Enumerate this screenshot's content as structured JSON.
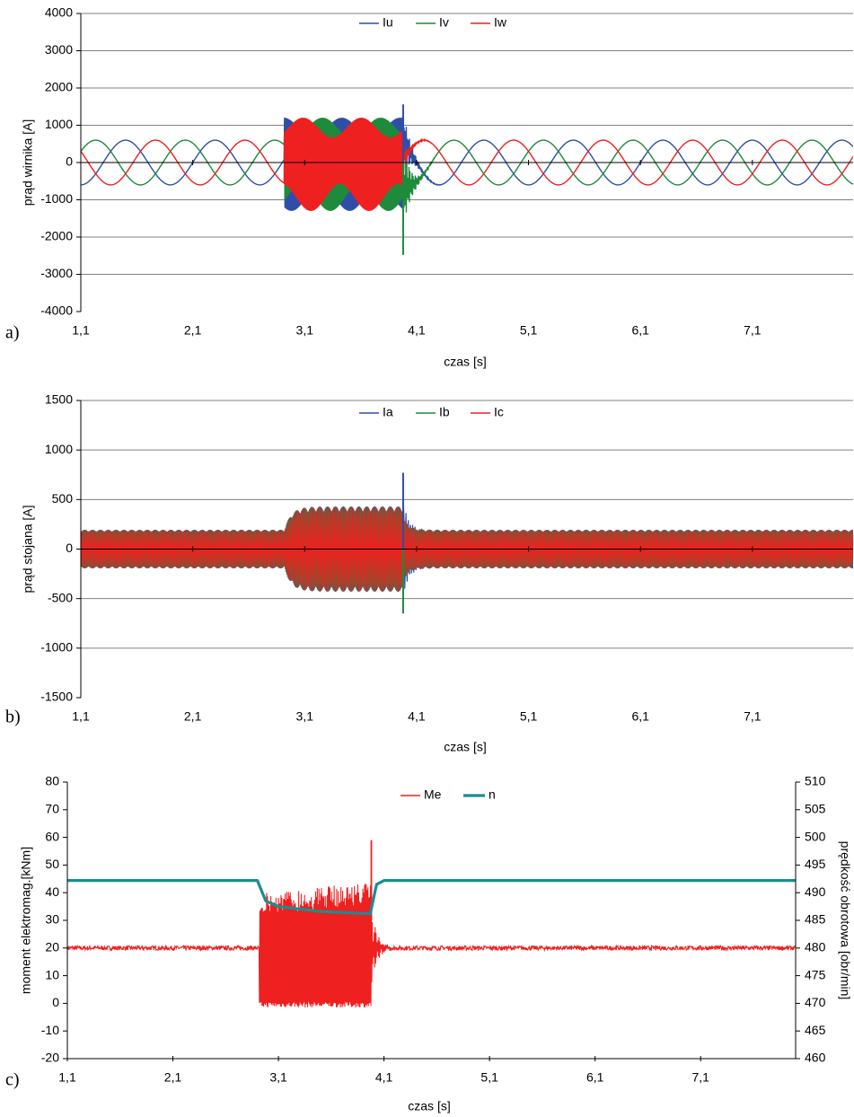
{
  "colors": {
    "blue": "#2E4FA8",
    "green": "#1E8A3C",
    "red": "#EE2020",
    "teal": "#1A8E8E",
    "grid": "#808080",
    "axis": "#000000"
  },
  "chart_data": [
    {
      "type": "line",
      "panel_label": "a)",
      "xlabel": "czas [s]",
      "ylabel": "prąd wirnika [A]",
      "xlim": [
        1.1,
        8.0
      ],
      "ylim": [
        -4000,
        4000
      ],
      "x_ticks": [
        1.1,
        2.1,
        3.1,
        4.1,
        5.1,
        6.1,
        7.1
      ],
      "x_tick_labels": [
        "1,1",
        "2,1",
        "3,1",
        "4,1",
        "5,1",
        "6,1",
        "7,1"
      ],
      "y_ticks": [
        -4000,
        -3000,
        -2000,
        -1000,
        0,
        1000,
        2000,
        3000,
        4000
      ],
      "y_tick_labels": [
        "-4000",
        "-3000",
        "-2000",
        "-1000",
        "0",
        "1000",
        "2000",
        "3000",
        "4000"
      ],
      "grid": "horizontal",
      "legend_position": "top-center",
      "series": [
        {
          "name": "Iu",
          "color_key": "blue",
          "phase_deg": 0
        },
        {
          "name": "Iv",
          "color_key": "green",
          "phase_deg": 120
        },
        {
          "name": "Iw",
          "color_key": "red",
          "phase_deg": 240
        }
      ],
      "normal_amplitude": 600,
      "normal_period_s": 0.8,
      "fault_interval_s": [
        2.92,
        3.98
      ],
      "fault_envelope_min": 900,
      "fault_envelope_max": 1700,
      "fault_envelope_period_s": 0.52,
      "peaks": [
        {
          "series": "Iu",
          "x": 3.98,
          "y": 1560
        },
        {
          "series": "Iv",
          "x": 3.98,
          "y": -2480
        }
      ]
    },
    {
      "type": "line",
      "panel_label": "b)",
      "xlabel": "czas [s]",
      "ylabel": "prąd stojana [A]",
      "xlim": [
        1.1,
        8.0
      ],
      "ylim": [
        -1500,
        1500
      ],
      "x_ticks": [
        1.1,
        2.1,
        3.1,
        4.1,
        5.1,
        6.1,
        7.1
      ],
      "x_tick_labels": [
        "1,1",
        "2,1",
        "3,1",
        "4,1",
        "5,1",
        "6,1",
        "7,1"
      ],
      "y_ticks": [
        -1500,
        -1000,
        -500,
        0,
        500,
        1000,
        1500
      ],
      "y_tick_labels": [
        "-1500",
        "-1000",
        "-500",
        "0",
        "500",
        "1000",
        "1500"
      ],
      "grid": "horizontal",
      "legend_position": "top-center",
      "series": [
        {
          "name": "Ia",
          "color_key": "blue"
        },
        {
          "name": "Ib",
          "color_key": "green"
        },
        {
          "name": "Ic",
          "color_key": "red"
        }
      ],
      "normal_amplitude": 195,
      "fault_interval_s": [
        2.92,
        3.98
      ],
      "fault_amplitude": 430,
      "peaks": [
        {
          "series": "Ia",
          "x": 3.98,
          "y": 770
        },
        {
          "series": "Ib",
          "x": 3.98,
          "y": -650
        }
      ]
    },
    {
      "type": "line",
      "panel_label": "c)",
      "xlabel": "czas [s]",
      "ylabel": "moment elektromag.[kNm]",
      "y2label": "prędkość obrotowa [obr/min]",
      "xlim": [
        1.1,
        8.0
      ],
      "ylim": [
        -20,
        80
      ],
      "y2lim": [
        460,
        510
      ],
      "x_ticks": [
        1.1,
        2.1,
        3.1,
        4.1,
        5.1,
        6.1,
        7.1
      ],
      "x_tick_labels": [
        "1,1",
        "2,1",
        "3,1",
        "4,1",
        "5,1",
        "6,1",
        "7,1"
      ],
      "y_ticks": [
        -20,
        -10,
        0,
        10,
        20,
        30,
        40,
        50,
        60,
        70,
        80
      ],
      "y_tick_labels": [
        "-20",
        "-10",
        "0",
        "10",
        "20",
        "30",
        "40",
        "50",
        "60",
        "70",
        "80"
      ],
      "y2_ticks": [
        460,
        465,
        470,
        475,
        480,
        485,
        490,
        495,
        500,
        505,
        510
      ],
      "y2_tick_labels": [
        "460",
        "465",
        "470",
        "475",
        "480",
        "485",
        "490",
        "495",
        "500",
        "505",
        "510"
      ],
      "grid": "none",
      "legend_position": "top-center",
      "series": [
        {
          "name": "Me",
          "color_key": "red",
          "axis": "left",
          "normal_mean": 20,
          "normal_ripple": 0.8,
          "fault_low": -1.5,
          "fault_high_start": 40,
          "fault_high_end": 44,
          "peak": {
            "x": 3.98,
            "y": 59
          }
        },
        {
          "name": "n",
          "color_key": "teal",
          "axis": "right",
          "points": [
            [
              1.1,
              492.2
            ],
            [
              2.9,
              492.2
            ],
            [
              2.98,
              488.5
            ],
            [
              3.1,
              487.5
            ],
            [
              3.5,
              486.6
            ],
            [
              3.97,
              486.2
            ],
            [
              4.03,
              491.5
            ],
            [
              4.1,
              492.2
            ],
            [
              8.0,
              492.2
            ]
          ]
        }
      ],
      "fault_interval_s": [
        2.92,
        3.98
      ]
    }
  ]
}
